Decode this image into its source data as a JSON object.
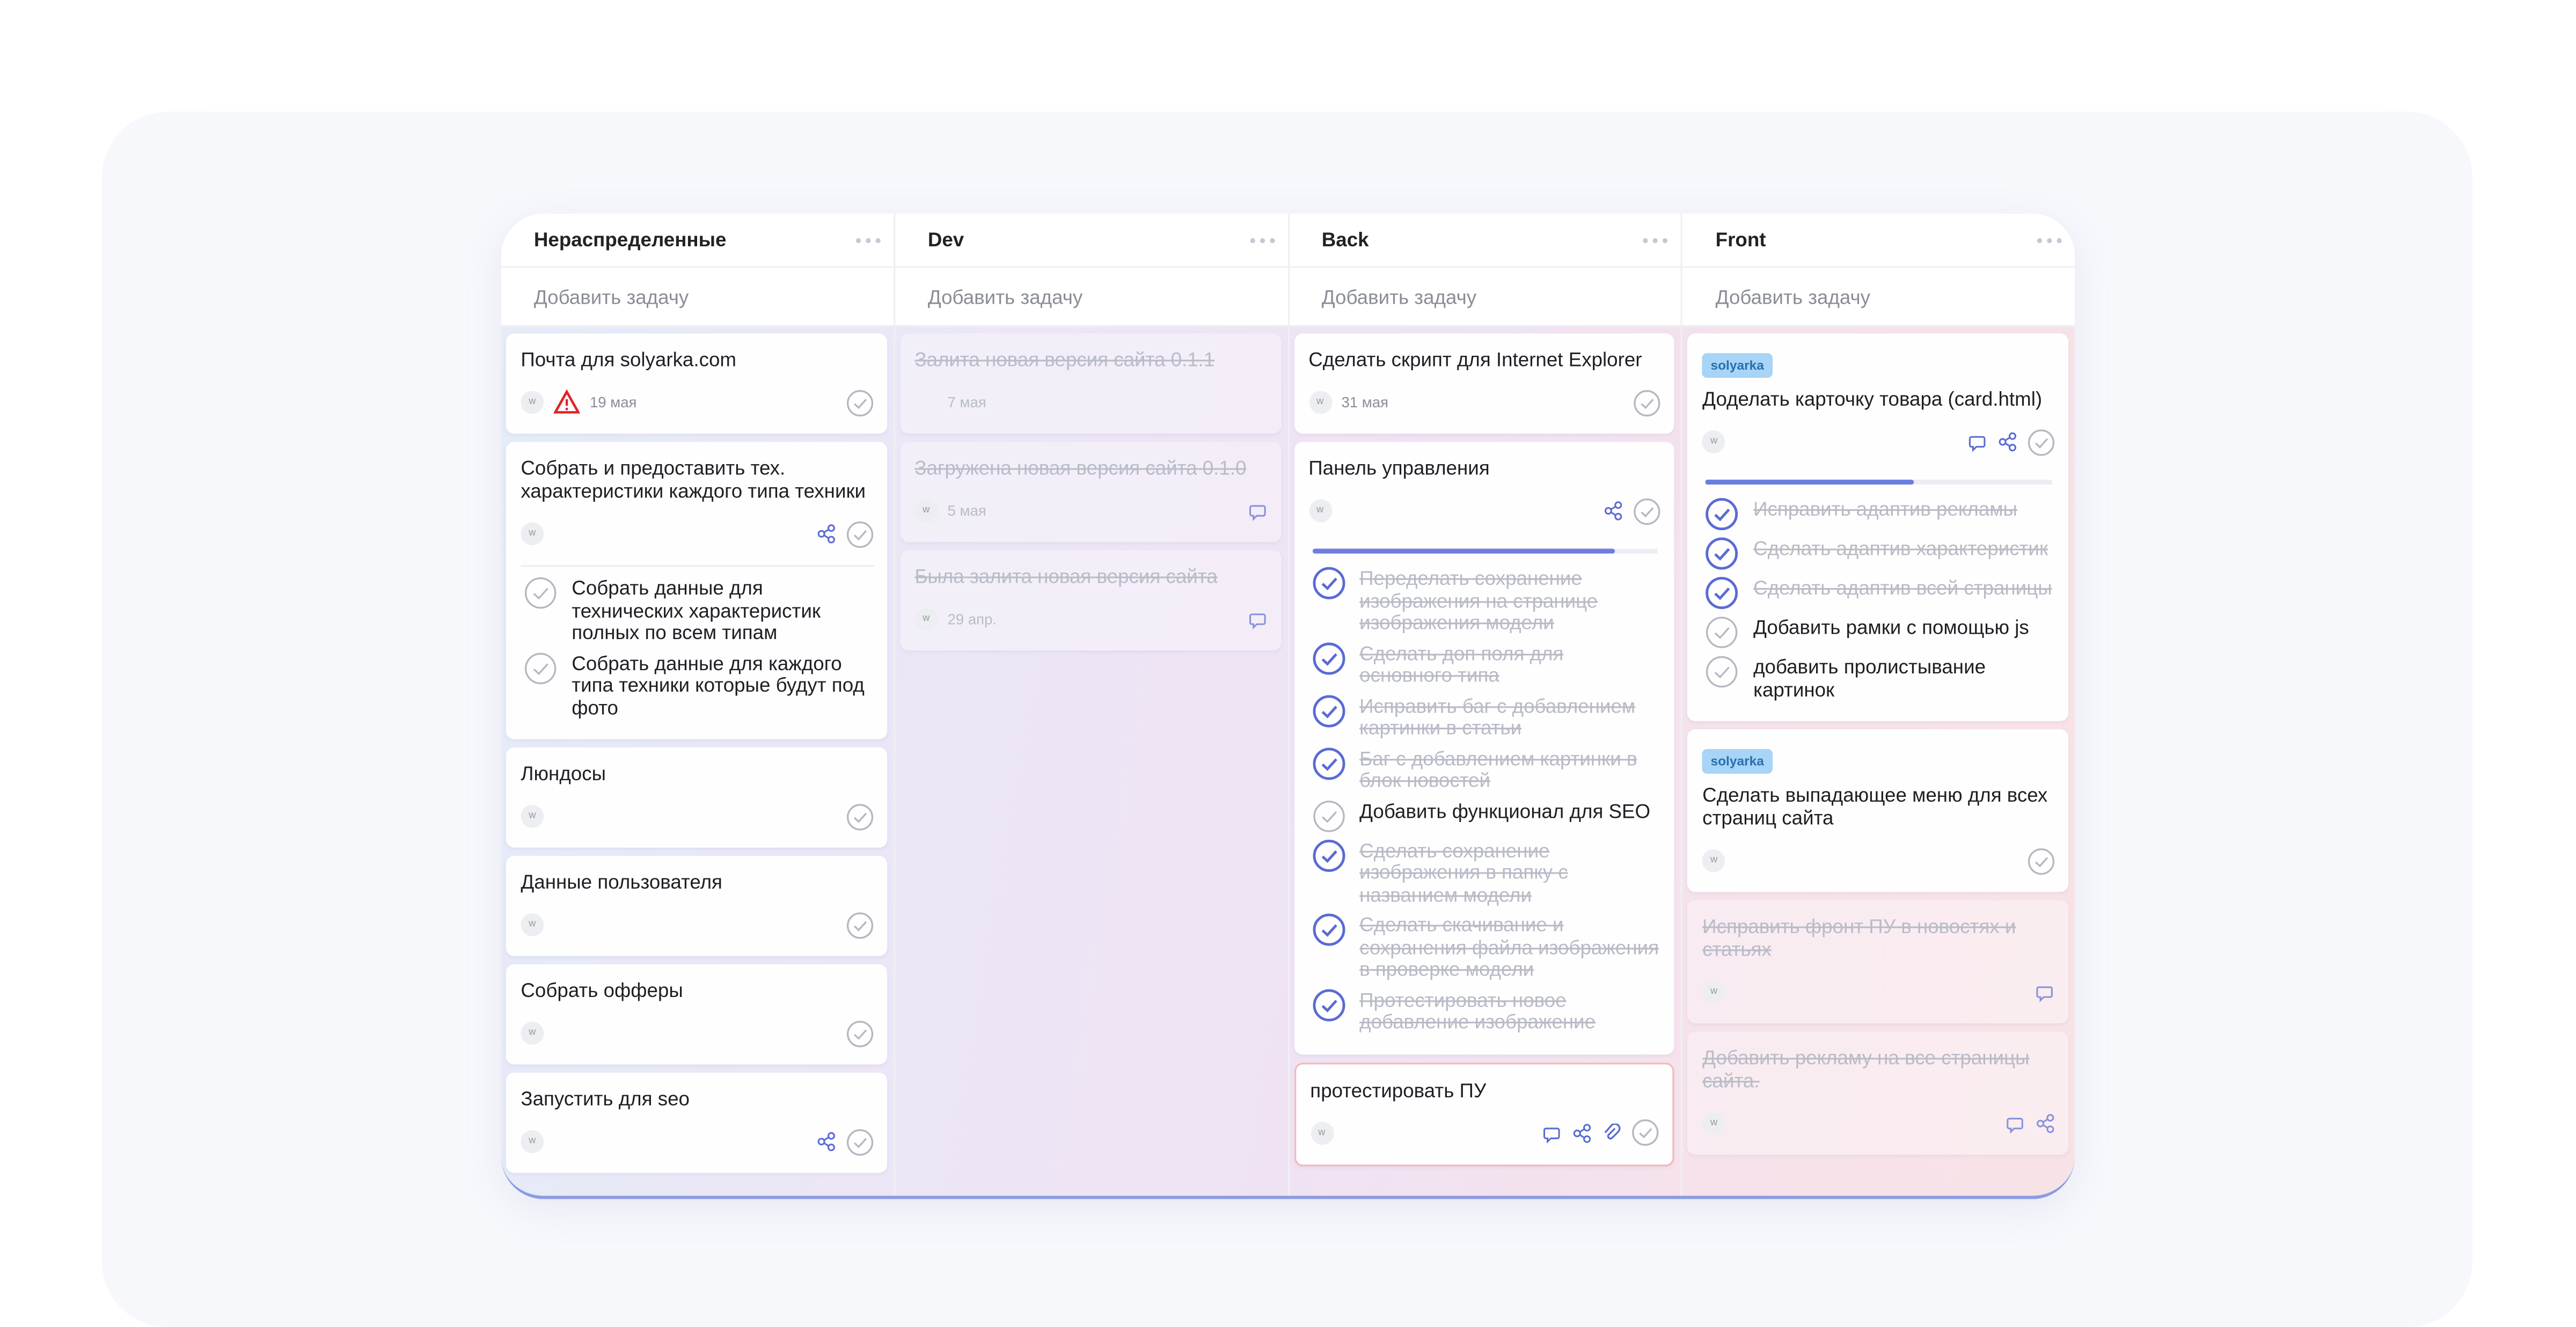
{
  "columns": [
    {
      "title": "Нераспределенные",
      "add_task": "Добавить задачу",
      "cards": [
        {
          "title": "Почта для solyarka.com",
          "avatar": "w",
          "date": "19 мая",
          "warning": true
        },
        {
          "title": "Собрать и предоставить тех. характеристики каждого типа техники",
          "avatar": "w",
          "share": true,
          "subtasks": [
            {
              "text": "Собрать данные для технических характеристик полных по всем типам",
              "done": false
            },
            {
              "text": "Собрать данные для каждого типа техники которые будут под фото",
              "done": false
            }
          ]
        },
        {
          "title": "Люндосы",
          "avatar": "w"
        },
        {
          "title": "Данные пользователя",
          "avatar": "w"
        },
        {
          "title": "Собрать офферы",
          "avatar": "w"
        },
        {
          "title": "Запустить для seo",
          "avatar": "w",
          "share": true
        }
      ]
    },
    {
      "title": "Dev",
      "add_task": "Добавить задачу",
      "cards": [
        {
          "title": "Залита новая версия сайта 0.1.1",
          "date": "7 мая",
          "done": true
        },
        {
          "title": "Загружена новая версия сайта 0.1.0",
          "avatar": "w",
          "date": "5 мая",
          "done": true,
          "comment": true
        },
        {
          "title": "Была залита новая версия сайта",
          "avatar": "w",
          "date": "29 апр.",
          "done": true,
          "comment": true
        }
      ]
    },
    {
      "title": "Back",
      "add_task": "Добавить задачу",
      "cards": [
        {
          "title": "Сделать скрипт для Internet Explorer",
          "avatar": "w",
          "date": "31 мая"
        },
        {
          "title": "Панель управления",
          "avatar": "w",
          "share": true,
          "progress_bar": true,
          "subtasks": [
            {
              "text": "Переделать сохранение изображения на странице изображения модели",
              "done": true
            },
            {
              "text": "Сделать доп поля для основного типа",
              "done": true
            },
            {
              "text": "Исправить баг с добавлением картинки в статьи",
              "done": true
            },
            {
              "text": "Баг с добавлением картинки в блок новостей",
              "done": true
            },
            {
              "text": "Добавить функционал для SEO",
              "done": false
            },
            {
              "text": "Сделать сохранение изображения в папку с названием модели",
              "done": true
            },
            {
              "text": "Сделать скачивание и сохранения файла изображения в проверке модели",
              "done": true
            },
            {
              "text": "Протестировать новое добавление изображение",
              "done": true
            }
          ]
        },
        {
          "title": "протестировать ПУ",
          "avatar": "w",
          "comment": true,
          "share": true,
          "attach": true,
          "bordered": true
        }
      ]
    },
    {
      "title": "Front",
      "add_task": "Добавить задачу",
      "cards": [
        {
          "tag": "solyarka",
          "title": "Доделать карточку товара (card.html)",
          "avatar": "w",
          "comment": true,
          "share": true,
          "progress_bar": true,
          "subtasks": [
            {
              "text": "Исправить адаптив рекламы",
              "done": true
            },
            {
              "text": "Сделать адаптив характеристик",
              "done": true
            },
            {
              "text": "Сделать адаптив всей страницы",
              "done": true
            },
            {
              "text": "Добавить рамки с помощью js",
              "done": false
            },
            {
              "text": "добавить пролистывание картинок",
              "done": false
            }
          ]
        },
        {
          "tag": "solyarka",
          "title": "Сделать выпадающее меню для всех страниц сайта",
          "avatar": "w"
        },
        {
          "title": "Исправить фронт ПУ в новостях и статьях",
          "avatar": "w",
          "done": true,
          "comment": true
        },
        {
          "title": "Добавить рекламу на все страницы сайта.",
          "avatar": "w",
          "done": true,
          "comment": true,
          "share": true
        }
      ]
    }
  ]
}
